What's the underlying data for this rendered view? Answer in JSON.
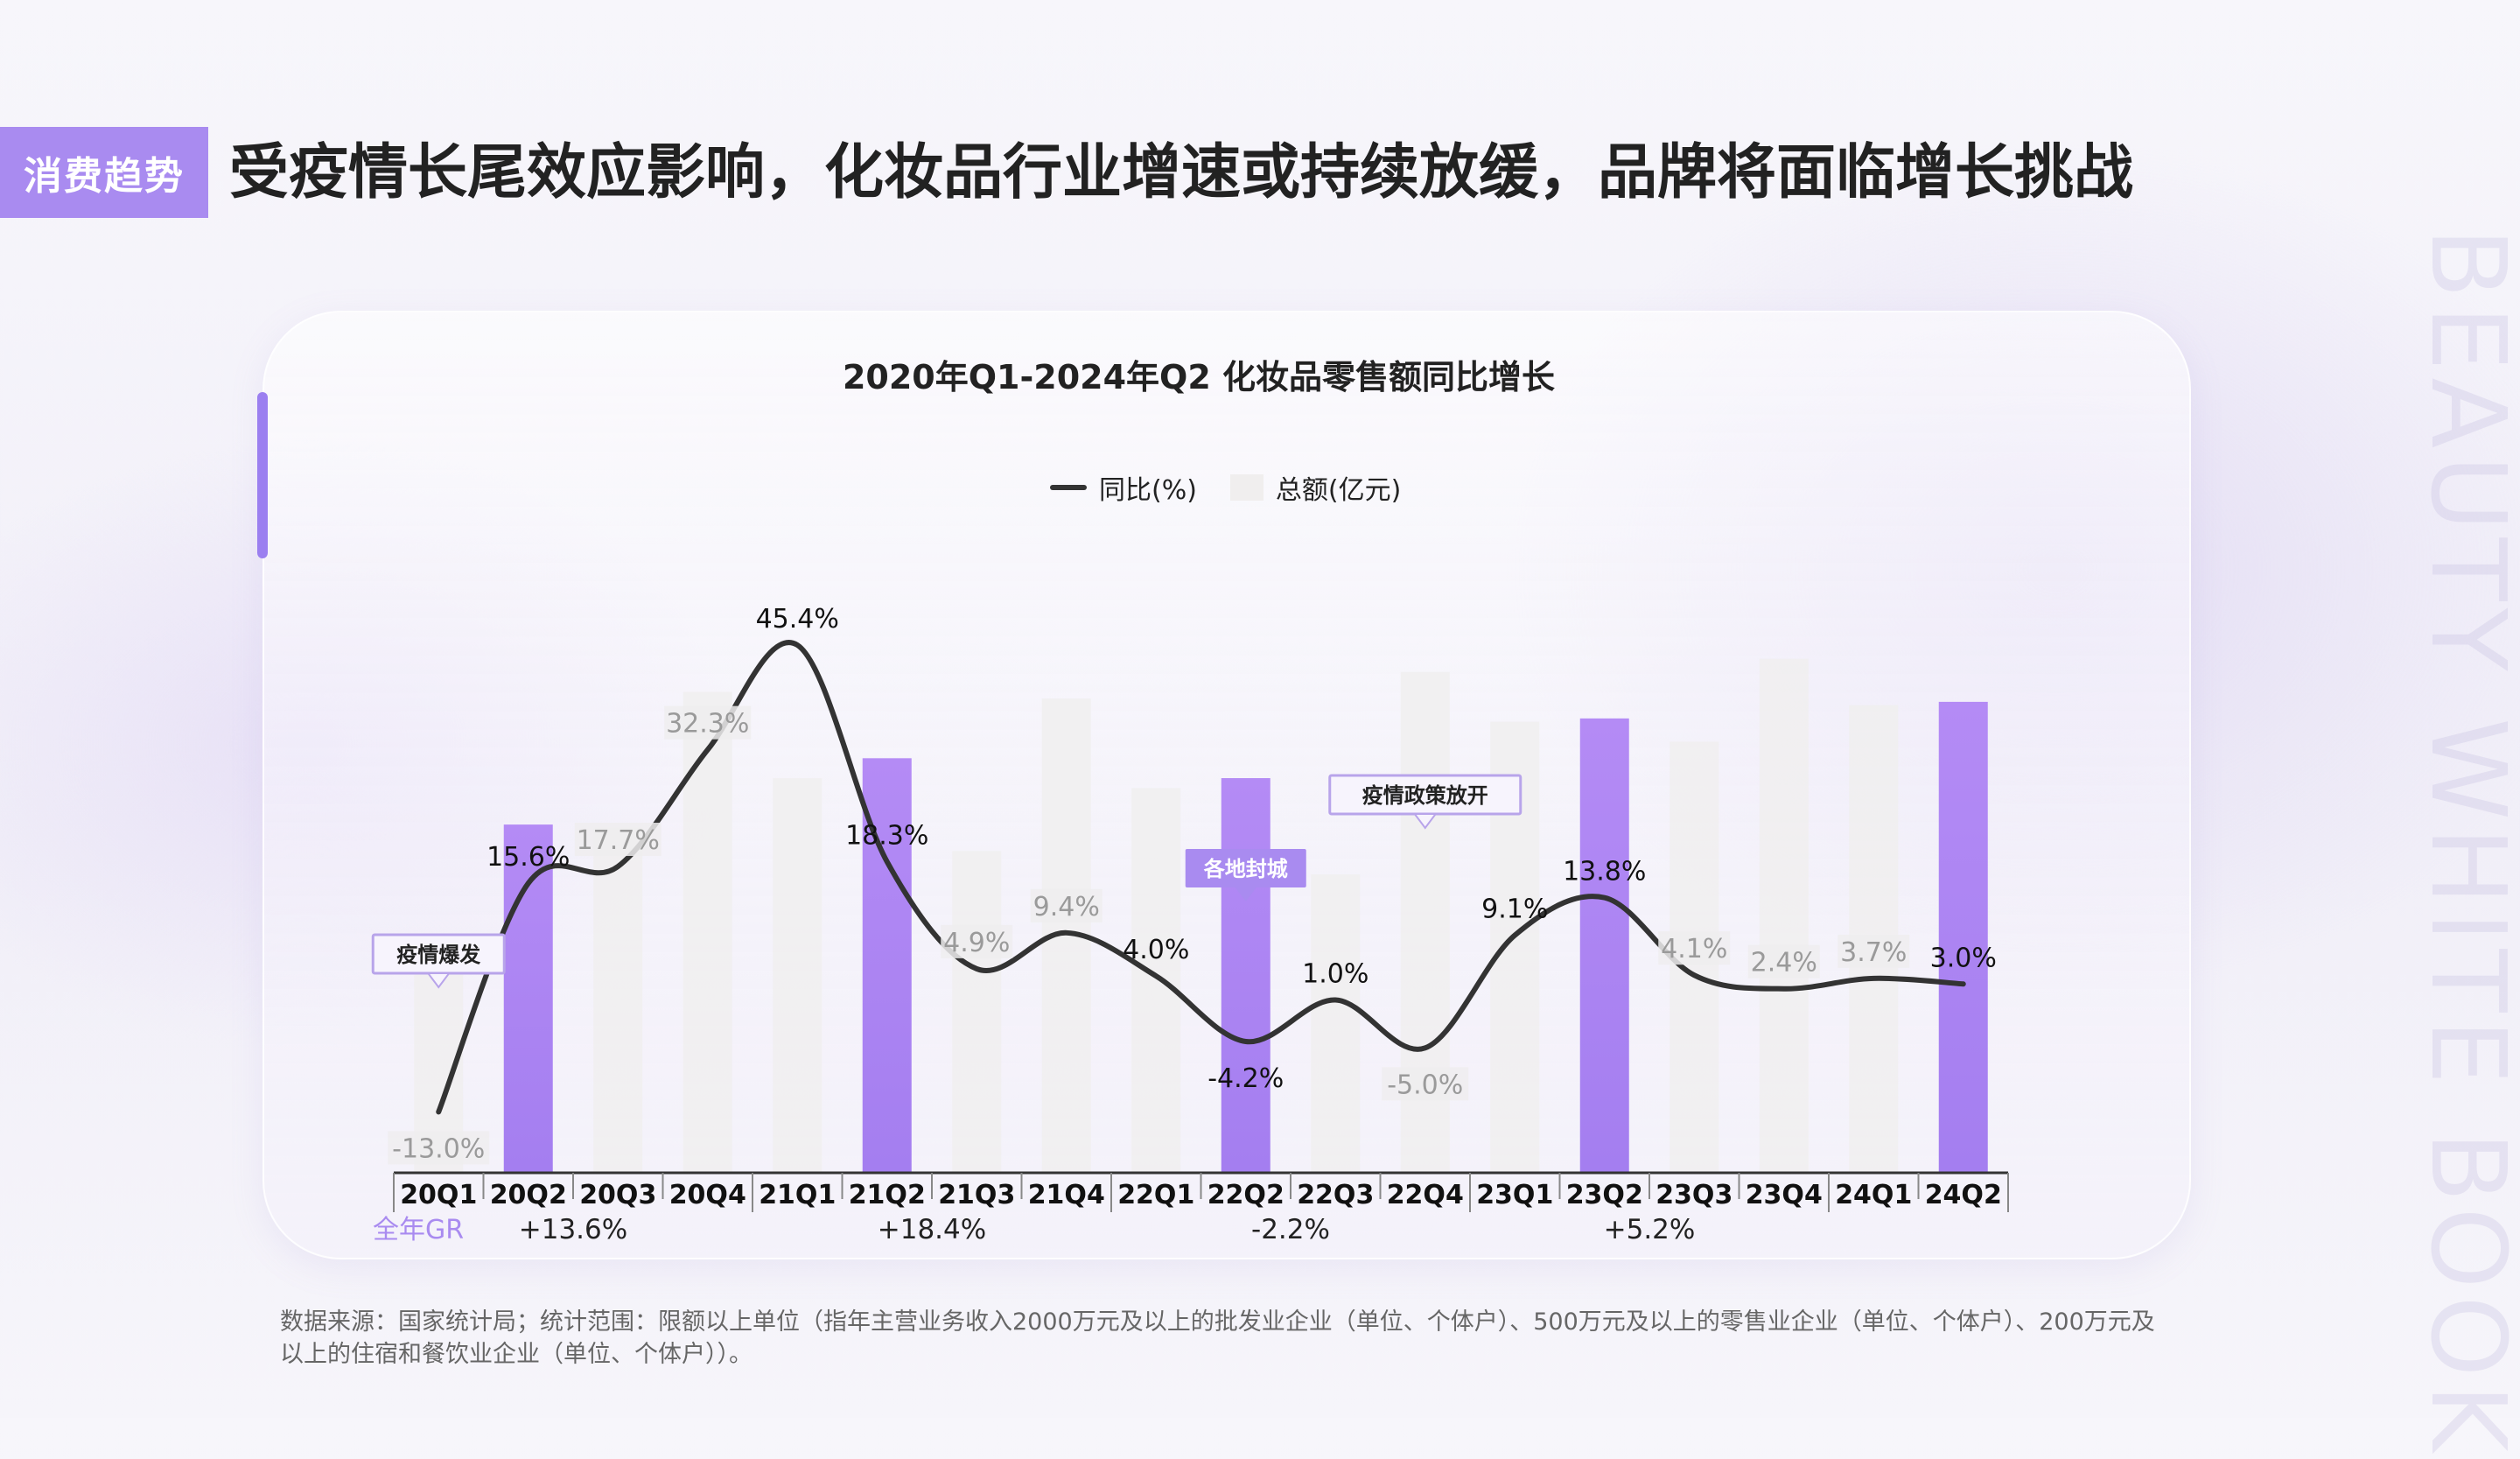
{
  "header": {
    "tag": "消费趋势",
    "headline": "受疫情长尾效应影响，化妆品行业增速或持续放缓，品牌将面临增长挑战"
  },
  "watermark": "BEAUTY WHITE BOOK",
  "footnote": "数据来源：国家统计局；统计范围：限额以上单位（指年主营业务收入2000万元及以上的批发业企业（单位、个体户）、500万元及以上的零售业企业（单位、个体户）、200万元及以上的住宿和餐饮业企业（单位、个体户））。",
  "colors": {
    "accent": "#a98bf0",
    "bar_highlight": "#a47ef0",
    "bar_default": "#f0eeee",
    "line": "#333333"
  },
  "chart_data": {
    "type": "bar+line",
    "title": "2020年Q1-2024年Q2 化妆品零售额同比增长",
    "legend": [
      "同比(%)",
      "总额(亿元)"
    ],
    "categories": [
      "20Q1",
      "20Q2",
      "20Q3",
      "20Q4",
      "21Q1",
      "21Q2",
      "21Q3",
      "21Q4",
      "22Q1",
      "22Q2",
      "22Q3",
      "22Q4",
      "23Q1",
      "23Q2",
      "23Q3",
      "23Q4",
      "24Q1",
      "24Q2"
    ],
    "series": [
      {
        "name": "同比(%)",
        "kind": "line",
        "values": [
          -13.0,
          15.6,
          17.7,
          32.3,
          45.4,
          18.3,
          4.9,
          9.4,
          4.0,
          -4.2,
          1.0,
          -5.0,
          9.1,
          13.8,
          4.1,
          2.4,
          3.7,
          3.0
        ],
        "labels": [
          "-13.0%",
          "15.6%",
          "17.7%",
          "32.3%",
          "45.4%",
          "18.3%",
          "4.9%",
          "9.4%",
          "4.0%",
          "-4.2%",
          "1.0%",
          "-5.0%",
          "9.1%",
          "13.8%",
          "4.1%",
          "2.4%",
          "3.7%",
          "3.0%"
        ]
      },
      {
        "name": "总额(亿元)",
        "kind": "bar",
        "values": [
          700,
          1050,
          1040,
          1450,
          1190,
          1250,
          970,
          1430,
          1160,
          1190,
          900,
          1510,
          1360,
          1370,
          1300,
          1550,
          1410,
          1420
        ],
        "highlight": [
          false,
          true,
          false,
          false,
          false,
          true,
          false,
          false,
          false,
          true,
          false,
          false,
          false,
          true,
          false,
          false,
          false,
          true
        ]
      }
    ],
    "y_line_range": [
      -25,
      50
    ],
    "y_bar_range": [
      0,
      1900
    ],
    "annotations": [
      {
        "text": "疫情爆发",
        "category": "20Q1"
      },
      {
        "text": "各地封城",
        "category": "22Q2"
      },
      {
        "text": "疫情政策放开",
        "category": "22Q4"
      }
    ],
    "annual_growth": {
      "label": "全年GR",
      "years": [
        {
          "value": "+13.6%"
        },
        {
          "value": "+18.4%"
        },
        {
          "value": "-2.2%"
        },
        {
          "value": "+5.2%"
        }
      ]
    }
  }
}
